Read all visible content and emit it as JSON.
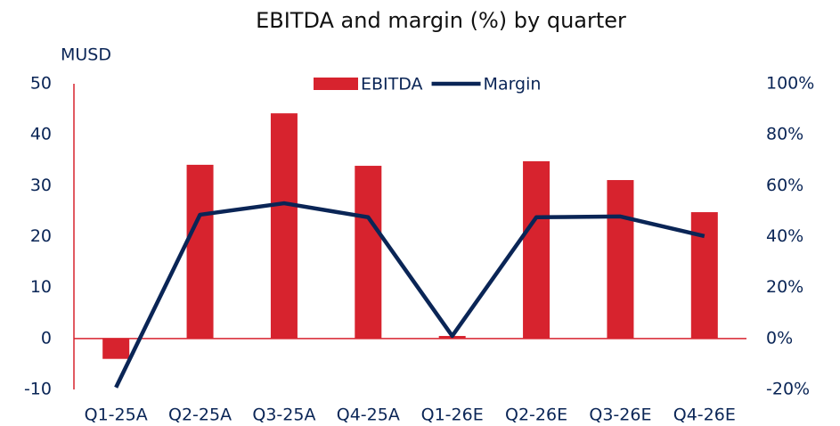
{
  "chart_data": {
    "type": "bar",
    "title": "EBITDA and margin (%) by quarter",
    "y_label": "MUSD",
    "categories": [
      "Q1-25A",
      "Q2-25A",
      "Q3-25A",
      "Q4-25A",
      "Q1-26E",
      "Q2-26E",
      "Q3-26E",
      "Q4-26E"
    ],
    "series": [
      {
        "name": "EBITDA",
        "type": "bar",
        "color": "#d7232e",
        "values": [
          -4.0,
          34.1,
          44.2,
          33.9,
          0.5,
          34.8,
          31.1,
          24.8
        ]
      },
      {
        "name": "Margin",
        "type": "line",
        "axis": "y2",
        "color": "#0a2556",
        "values": [
          -19.2,
          48.6,
          53.1,
          47.6,
          1.0,
          47.6,
          47.9,
          40.2
        ]
      }
    ],
    "ylim": [
      -10,
      50
    ],
    "yticks": [
      -10,
      0,
      10,
      20,
      30,
      40,
      50
    ],
    "y2lim": [
      -20,
      100
    ],
    "y2ticks": [
      {
        "value": -20,
        "label": "-20%"
      },
      {
        "value": 0,
        "label": "0%"
      },
      {
        "value": 20,
        "label": "20%"
      },
      {
        "value": 40,
        "label": "40%"
      },
      {
        "value": 60,
        "label": "60%"
      },
      {
        "value": 80,
        "label": "80%"
      },
      {
        "value": 100,
        "label": "100%"
      }
    ],
    "grid": false,
    "legend": "top"
  }
}
